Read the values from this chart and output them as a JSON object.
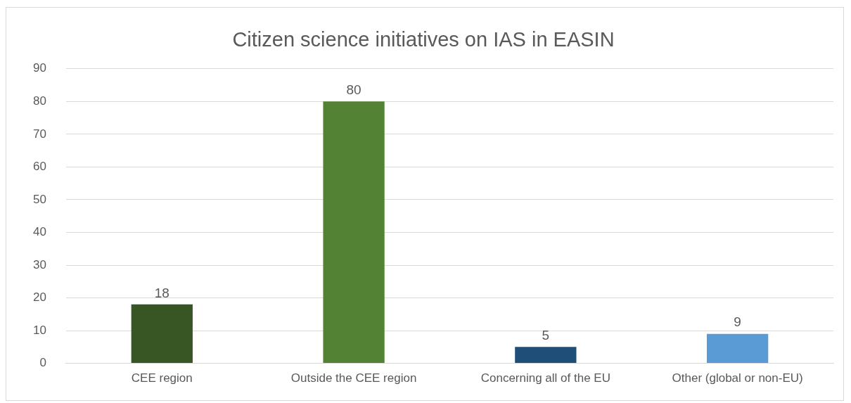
{
  "chart_data": {
    "type": "bar",
    "title": "Citizen science initiatives on IAS in EASIN",
    "categories": [
      "CEE region",
      "Outside the CEE region",
      "Concerning all of the EU",
      "Other (global or non-EU)"
    ],
    "values": [
      18,
      80,
      5,
      9
    ],
    "colors": [
      "#375623",
      "#548235",
      "#1f4e79",
      "#5b9bd5"
    ],
    "ylim": [
      0,
      90
    ],
    "yticks": [
      0,
      10,
      20,
      30,
      40,
      50,
      60,
      70,
      80,
      90
    ],
    "grid": "y",
    "legend": false,
    "data_labels": true
  }
}
